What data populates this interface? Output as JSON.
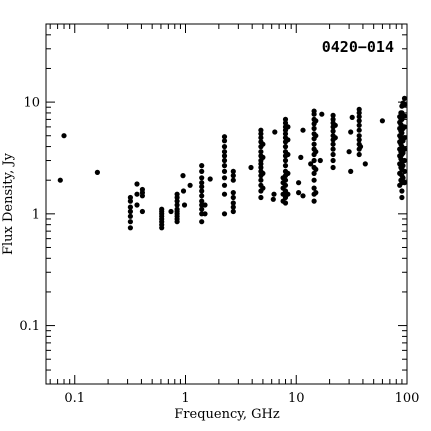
{
  "chart_data": {
    "type": "scatter",
    "title": "",
    "annotation": "0420−014",
    "xlabel": "Frequency, GHz",
    "ylabel": "Flux Density, Jy",
    "xscale": "log",
    "yscale": "log",
    "xlim": [
      0.055,
      100
    ],
    "ylim": [
      0.03,
      50
    ],
    "xticks": [
      {
        "value": 0.1,
        "label": "0.1"
      },
      {
        "value": 1,
        "label": "1"
      },
      {
        "value": 10,
        "label": "10"
      },
      {
        "value": 100,
        "label": "100"
      }
    ],
    "yticks": [
      {
        "value": 0.1,
        "label": "0.1"
      },
      {
        "value": 1,
        "label": "1"
      },
      {
        "value": 10,
        "label": "10"
      }
    ],
    "grid": false,
    "legend": "none",
    "marker_color": "#000000",
    "series": [
      {
        "points": [
          [
            0.074,
            2.0
          ],
          [
            0.08,
            5.0
          ],
          [
            0.16,
            2.35
          ],
          [
            0.318,
            0.75
          ],
          [
            0.318,
            0.85
          ],
          [
            0.318,
            0.95
          ],
          [
            0.318,
            1.05
          ],
          [
            0.318,
            1.15
          ],
          [
            0.318,
            1.3
          ],
          [
            0.318,
            1.4
          ],
          [
            0.365,
            1.2
          ],
          [
            0.365,
            1.85
          ],
          [
            0.365,
            1.5
          ],
          [
            0.408,
            1.05
          ],
          [
            0.408,
            1.55
          ],
          [
            0.408,
            1.65
          ],
          [
            0.408,
            1.45
          ],
          [
            0.61,
            0.75
          ],
          [
            0.61,
            0.8
          ],
          [
            0.61,
            0.85
          ],
          [
            0.61,
            0.9
          ],
          [
            0.61,
            0.95
          ],
          [
            0.61,
            1.0
          ],
          [
            0.61,
            1.05
          ],
          [
            0.61,
            1.1
          ],
          [
            0.74,
            1.05
          ],
          [
            0.84,
            0.85
          ],
          [
            0.84,
            0.9
          ],
          [
            0.84,
            0.95
          ],
          [
            0.84,
            1.0
          ],
          [
            0.84,
            1.05
          ],
          [
            0.84,
            1.1
          ],
          [
            0.84,
            1.2
          ],
          [
            0.84,
            1.3
          ],
          [
            0.84,
            1.4
          ],
          [
            0.84,
            1.5
          ],
          [
            0.95,
            2.2
          ],
          [
            0.96,
            1.6
          ],
          [
            0.98,
            1.2
          ],
          [
            1.1,
            1.8
          ],
          [
            1.4,
            0.85
          ],
          [
            1.4,
            1.0
          ],
          [
            1.4,
            1.1
          ],
          [
            1.4,
            1.2
          ],
          [
            1.4,
            1.3
          ],
          [
            1.4,
            1.45
          ],
          [
            1.4,
            1.6
          ],
          [
            1.4,
            1.75
          ],
          [
            1.4,
            1.9
          ],
          [
            1.4,
            2.1
          ],
          [
            1.4,
            2.4
          ],
          [
            1.4,
            2.7
          ],
          [
            1.5,
            1.0
          ],
          [
            1.5,
            1.2
          ],
          [
            1.67,
            2.05
          ],
          [
            2.25,
            1.0
          ],
          [
            2.25,
            1.5
          ],
          [
            2.25,
            1.8
          ],
          [
            2.25,
            2.1
          ],
          [
            2.25,
            2.4
          ],
          [
            2.25,
            2.7
          ],
          [
            2.25,
            3.0
          ],
          [
            2.25,
            3.3
          ],
          [
            2.25,
            3.6
          ],
          [
            2.25,
            4.0
          ],
          [
            2.25,
            4.5
          ],
          [
            2.25,
            4.9
          ],
          [
            2.7,
            1.05
          ],
          [
            2.7,
            1.15
          ],
          [
            2.7,
            1.25
          ],
          [
            2.7,
            1.4
          ],
          [
            2.7,
            1.55
          ],
          [
            2.7,
            2.0
          ],
          [
            2.7,
            2.2
          ],
          [
            2.7,
            2.4
          ],
          [
            3.9,
            2.6
          ],
          [
            4.8,
            1.4
          ],
          [
            4.8,
            1.6
          ],
          [
            4.8,
            1.8
          ],
          [
            4.8,
            2.0
          ],
          [
            4.8,
            2.2
          ],
          [
            4.8,
            2.4
          ],
          [
            4.8,
            2.6
          ],
          [
            4.8,
            2.8
          ],
          [
            4.8,
            3.0
          ],
          [
            4.8,
            3.3
          ],
          [
            4.8,
            3.6
          ],
          [
            4.8,
            4.0
          ],
          [
            4.8,
            4.4
          ],
          [
            4.8,
            4.8
          ],
          [
            4.8,
            5.2
          ],
          [
            4.8,
            5.6
          ],
          [
            5.0,
            1.7
          ],
          [
            5.0,
            2.3
          ],
          [
            5.0,
            3.2
          ],
          [
            5.0,
            4.2
          ],
          [
            6.2,
            1.35
          ],
          [
            6.3,
            1.5
          ],
          [
            6.4,
            5.4
          ],
          [
            7.6,
            1.3
          ],
          [
            7.6,
            1.5
          ],
          [
            7.6,
            1.7
          ],
          [
            7.6,
            1.9
          ],
          [
            7.6,
            2.1
          ],
          [
            8.0,
            1.25
          ],
          [
            8.0,
            1.4
          ],
          [
            8.0,
            1.6
          ],
          [
            8.0,
            1.8
          ],
          [
            8.0,
            2.0
          ],
          [
            8.0,
            2.2
          ],
          [
            8.0,
            2.4
          ],
          [
            8.0,
            2.7
          ],
          [
            8.0,
            3.0
          ],
          [
            8.0,
            3.3
          ],
          [
            8.0,
            3.6
          ],
          [
            8.0,
            4.0
          ],
          [
            8.0,
            4.4
          ],
          [
            8.0,
            4.8
          ],
          [
            8.0,
            5.2
          ],
          [
            8.0,
            5.6
          ],
          [
            8.0,
            6.0
          ],
          [
            8.0,
            6.5
          ],
          [
            8.0,
            7.0
          ],
          [
            8.4,
            1.5
          ],
          [
            8.4,
            2.3
          ],
          [
            8.4,
            3.4
          ],
          [
            8.4,
            4.6
          ],
          [
            8.4,
            6.0
          ],
          [
            10.5,
            1.55
          ],
          [
            10.5,
            1.9
          ],
          [
            11.0,
            3.2
          ],
          [
            11.5,
            1.45
          ],
          [
            11.5,
            5.6
          ],
          [
            13.5,
            2.8
          ],
          [
            14.5,
            1.3
          ],
          [
            14.5,
            1.5
          ],
          [
            14.5,
            1.7
          ],
          [
            14.5,
            2.0
          ],
          [
            14.5,
            2.3
          ],
          [
            14.5,
            2.6
          ],
          [
            14.5,
            3.0
          ],
          [
            14.5,
            3.4
          ],
          [
            14.5,
            3.8
          ],
          [
            14.5,
            4.2
          ],
          [
            14.5,
            4.7
          ],
          [
            14.5,
            5.2
          ],
          [
            14.5,
            5.8
          ],
          [
            14.5,
            6.4
          ],
          [
            14.5,
            7.0
          ],
          [
            14.5,
            7.8
          ],
          [
            14.5,
            8.3
          ],
          [
            15.0,
            1.55
          ],
          [
            15.0,
            2.5
          ],
          [
            15.0,
            3.6
          ],
          [
            15.0,
            5.0
          ],
          [
            15.0,
            6.8
          ],
          [
            16.5,
            3.0
          ],
          [
            17.0,
            7.8
          ],
          [
            21.5,
            2.6
          ],
          [
            21.5,
            3.0
          ],
          [
            21.5,
            3.4
          ],
          [
            21.5,
            3.8
          ],
          [
            21.5,
            4.2
          ],
          [
            21.5,
            4.6
          ],
          [
            21.5,
            5.0
          ],
          [
            21.5,
            5.5
          ],
          [
            21.5,
            6.0
          ],
          [
            21.5,
            6.5
          ],
          [
            21.5,
            7.0
          ],
          [
            21.5,
            7.6
          ],
          [
            22.5,
            4.8
          ],
          [
            22.5,
            6.2
          ],
          [
            30.0,
            3.6
          ],
          [
            31.0,
            2.4
          ],
          [
            31.0,
            5.4
          ],
          [
            32.0,
            7.3
          ],
          [
            37.0,
            3.4
          ],
          [
            37.0,
            3.8
          ],
          [
            37.0,
            4.2
          ],
          [
            37.0,
            4.6
          ],
          [
            37.0,
            5.0
          ],
          [
            37.0,
            5.6
          ],
          [
            37.0,
            6.2
          ],
          [
            37.0,
            6.8
          ],
          [
            37.0,
            7.4
          ],
          [
            37.0,
            8.0
          ],
          [
            37.0,
            8.6
          ],
          [
            38.0,
            4.0
          ],
          [
            42.0,
            2.8
          ],
          [
            60.0,
            6.8
          ],
          [
            86.0,
            1.8
          ],
          [
            86.0,
            2.3
          ],
          [
            86.0,
            2.8
          ],
          [
            86.0,
            3.3
          ],
          [
            86.0,
            3.8
          ],
          [
            86.0,
            4.4
          ],
          [
            86.0,
            5.0
          ],
          [
            86.0,
            5.8
          ],
          [
            86.0,
            6.6
          ],
          [
            86.0,
            7.4
          ],
          [
            88.0,
            2.0
          ],
          [
            88.0,
            2.6
          ],
          [
            88.0,
            3.1
          ],
          [
            88.0,
            3.6
          ],
          [
            88.0,
            4.2
          ],
          [
            88.0,
            4.8
          ],
          [
            88.0,
            5.5
          ],
          [
            88.0,
            6.3
          ],
          [
            88.0,
            7.1
          ],
          [
            88.0,
            8.0
          ],
          [
            90.0,
            1.4
          ],
          [
            90.0,
            1.6
          ],
          [
            90.0,
            1.9
          ],
          [
            90.0,
            2.2
          ],
          [
            90.0,
            2.5
          ],
          [
            90.0,
            2.9
          ],
          [
            90.0,
            3.4
          ],
          [
            90.0,
            4.0
          ],
          [
            90.0,
            4.6
          ],
          [
            90.0,
            5.3
          ],
          [
            90.0,
            6.1
          ],
          [
            90.0,
            7.0
          ],
          [
            90.0,
            8.0
          ],
          [
            90.0,
            9.2
          ],
          [
            92.0,
            2.1
          ],
          [
            92.0,
            2.7
          ],
          [
            92.0,
            3.5
          ],
          [
            92.0,
            4.5
          ],
          [
            92.0,
            5.8
          ],
          [
            92.0,
            7.5
          ],
          [
            92.0,
            9.8
          ],
          [
            95.0,
            1.9
          ],
          [
            95.0,
            2.4
          ],
          [
            95.0,
            3.0
          ],
          [
            95.0,
            3.8
          ],
          [
            95.0,
            4.8
          ],
          [
            95.0,
            6.0
          ],
          [
            95.0,
            7.5
          ],
          [
            95.0,
            9.5
          ],
          [
            95.0,
            10.8
          ]
        ]
      }
    ]
  }
}
